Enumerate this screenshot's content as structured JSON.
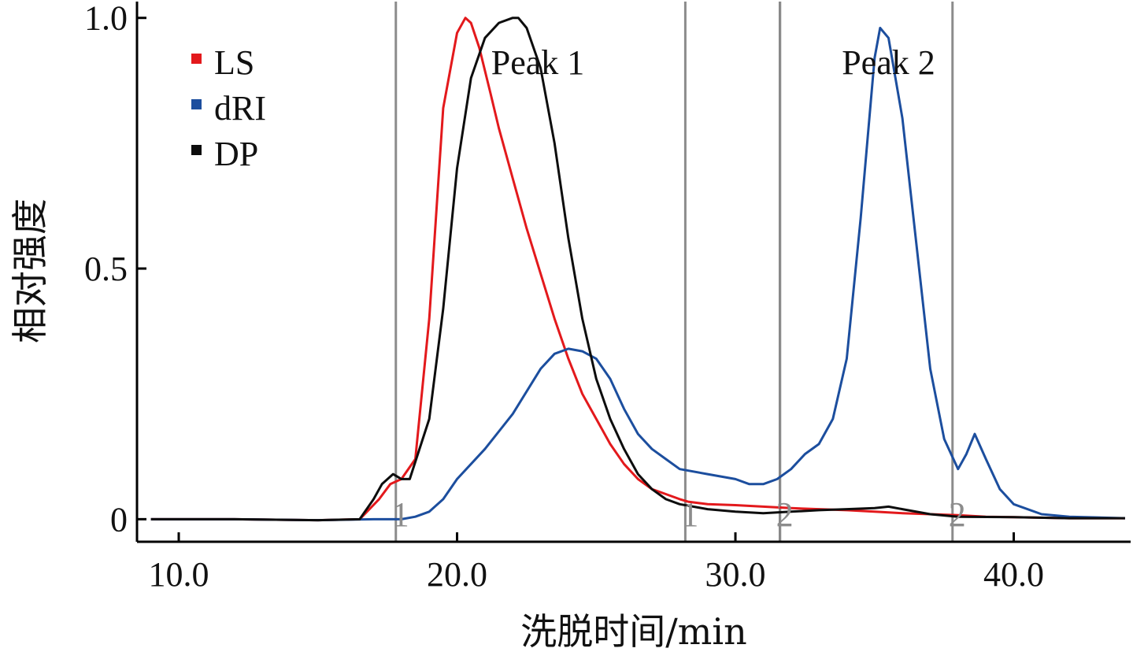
{
  "chart_data": {
    "type": "line",
    "xlabel": "洗脱时间/min",
    "ylabel": "相对强度",
    "xlim": [
      8.5,
      44.2
    ],
    "ylim": [
      -0.045,
      1.02
    ],
    "x_ticks": [
      10,
      20,
      30,
      40
    ],
    "x_tick_labels": [
      "10.0",
      "20.0",
      "30.0",
      "40.0"
    ],
    "y_ticks": [
      0,
      0.5,
      1.0
    ],
    "y_tick_labels": [
      "0",
      "0.5",
      "1.0"
    ],
    "grid": false,
    "legend_position": "top-left",
    "series": [
      {
        "name": "LS",
        "color": "#e3191c",
        "x": [
          9,
          12,
          15,
          16.5,
          17.2,
          17.6,
          18,
          18.5,
          19,
          19.5,
          20,
          20.3,
          20.5,
          20.8,
          21.2,
          21.5,
          22,
          22.5,
          23,
          23.5,
          24,
          24.5,
          25,
          25.5,
          26,
          26.5,
          27,
          27.5,
          28,
          28.3,
          29,
          30,
          31,
          32,
          33,
          34,
          35,
          36,
          37,
          38,
          39,
          40,
          42,
          44
        ],
        "y": [
          0.0,
          0.0,
          -0.002,
          0.0,
          0.04,
          0.07,
          0.08,
          0.12,
          0.4,
          0.82,
          0.97,
          1.0,
          0.99,
          0.94,
          0.85,
          0.78,
          0.68,
          0.58,
          0.49,
          0.4,
          0.32,
          0.25,
          0.2,
          0.15,
          0.11,
          0.08,
          0.06,
          0.05,
          0.04,
          0.035,
          0.03,
          0.028,
          0.025,
          0.022,
          0.02,
          0.018,
          0.015,
          0.012,
          0.01,
          0.008,
          0.005,
          0.004,
          0.002,
          0.002
        ]
      },
      {
        "name": "dRI",
        "color": "#1c4e9e",
        "x": [
          9,
          12,
          15,
          17,
          18,
          18.5,
          19,
          19.5,
          20,
          21,
          22,
          23,
          23.5,
          24,
          24.5,
          25,
          25.5,
          26,
          26.5,
          27,
          27.5,
          28,
          29,
          30,
          30.5,
          31,
          31.5,
          32,
          32.5,
          33,
          33.5,
          34,
          34.5,
          35,
          35.2,
          35.5,
          36,
          36.5,
          37,
          37.5,
          38,
          38.3,
          38.6,
          39,
          39.5,
          40,
          41,
          42,
          44
        ],
        "y": [
          0.0,
          0.0,
          -0.002,
          0.0,
          0.0,
          0.005,
          0.015,
          0.04,
          0.08,
          0.14,
          0.21,
          0.3,
          0.33,
          0.34,
          0.335,
          0.32,
          0.28,
          0.22,
          0.17,
          0.14,
          0.12,
          0.1,
          0.09,
          0.08,
          0.07,
          0.07,
          0.08,
          0.1,
          0.13,
          0.15,
          0.2,
          0.32,
          0.6,
          0.92,
          0.98,
          0.96,
          0.8,
          0.55,
          0.3,
          0.16,
          0.1,
          0.13,
          0.17,
          0.12,
          0.06,
          0.03,
          0.01,
          0.005,
          0.002
        ]
      },
      {
        "name": "DP",
        "color": "#0d0d0d",
        "x": [
          9,
          12,
          15,
          16.5,
          17,
          17.3,
          17.7,
          18,
          18.3,
          19,
          19.5,
          20,
          20.5,
          21,
          21.5,
          22,
          22.2,
          22.5,
          23,
          23.5,
          24,
          24.5,
          25,
          25.5,
          26,
          26.5,
          27,
          27.5,
          28,
          29,
          30,
          31,
          32,
          33,
          34,
          35,
          35.5,
          36,
          37,
          38,
          40,
          42,
          44
        ],
        "y": [
          0.0,
          0.0,
          -0.002,
          0.0,
          0.04,
          0.07,
          0.09,
          0.08,
          0.08,
          0.2,
          0.42,
          0.7,
          0.88,
          0.96,
          0.99,
          1.0,
          1.0,
          0.98,
          0.9,
          0.75,
          0.56,
          0.4,
          0.28,
          0.2,
          0.14,
          0.09,
          0.06,
          0.04,
          0.03,
          0.02,
          0.015,
          0.012,
          0.015,
          0.018,
          0.02,
          0.022,
          0.025,
          0.02,
          0.01,
          0.005,
          0.004,
          0.002,
          0.002
        ]
      }
    ],
    "vertical_lines": [
      {
        "x": 17.8,
        "color": "#8c8c8c",
        "label": "1"
      },
      {
        "x": 28.2,
        "color": "#8c8c8c",
        "label": "1"
      },
      {
        "x": 31.6,
        "color": "#000000",
        "label": ""
      },
      {
        "x": 31.6,
        "color": "#8c8c8c",
        "label": "2"
      },
      {
        "x": 37.8,
        "color": "#8c8c8c",
        "label": "2"
      }
    ],
    "annotations": [
      {
        "text": "Peak 1",
        "x": 22.9,
        "y": 0.91
      },
      {
        "text": "Peak 2",
        "x": 35.5,
        "y": 0.91
      }
    ]
  }
}
